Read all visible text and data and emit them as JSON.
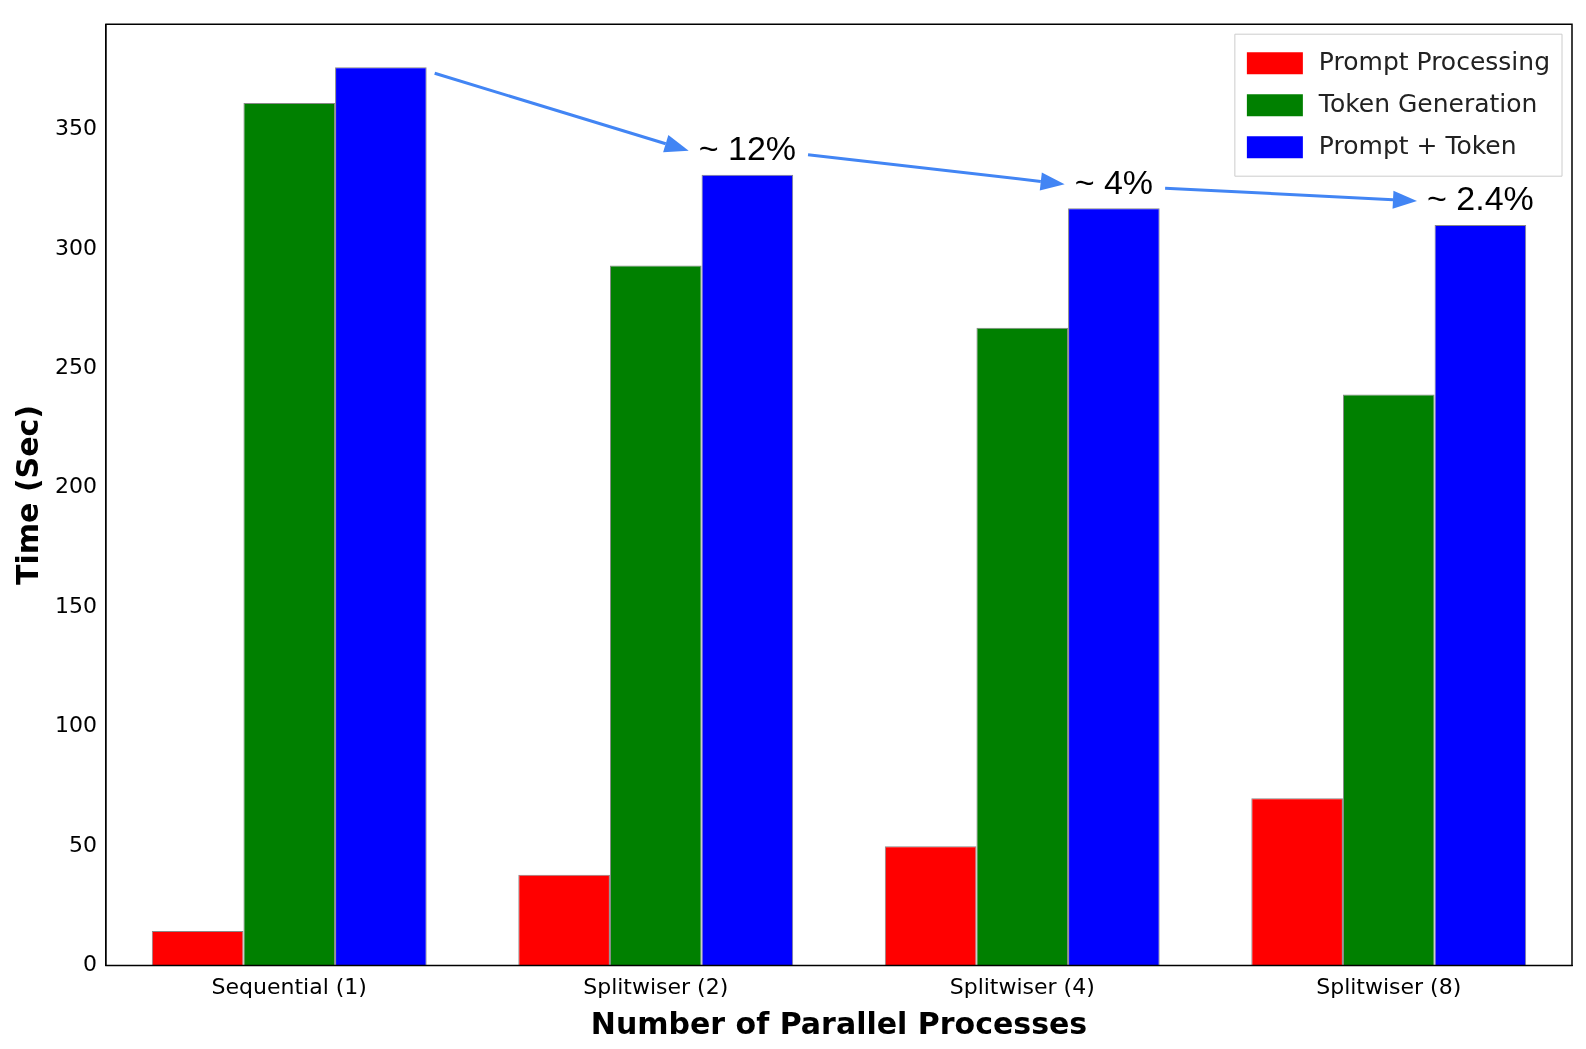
{
  "chart_data": {
    "type": "bar",
    "xlabel": "Number of Parallel Processes",
    "ylabel": "Time (Sec)",
    "categories": [
      "Sequential (1)",
      "Splitwiser (2)",
      "Splitwiser (4)",
      "Splitwiser (8)"
    ],
    "series": [
      {
        "name": "Prompt Processing",
        "color": "#ff0000",
        "values": [
          14.5,
          38,
          50,
          70
        ]
      },
      {
        "name": "Token Generation",
        "color": "#008000",
        "values": [
          361,
          293,
          267,
          239
        ]
      },
      {
        "name": "Prompt + Token",
        "color": "#0000ff",
        "values": [
          376,
          331,
          317,
          310
        ]
      }
    ],
    "ylim": [
      0,
      394
    ],
    "yticks": [
      0,
      50,
      100,
      150,
      200,
      250,
      300,
      350
    ],
    "grid": false,
    "legend": "top right",
    "annotations": [
      "~ 12%",
      "~ 4%",
      "~ 2.4%"
    ]
  }
}
